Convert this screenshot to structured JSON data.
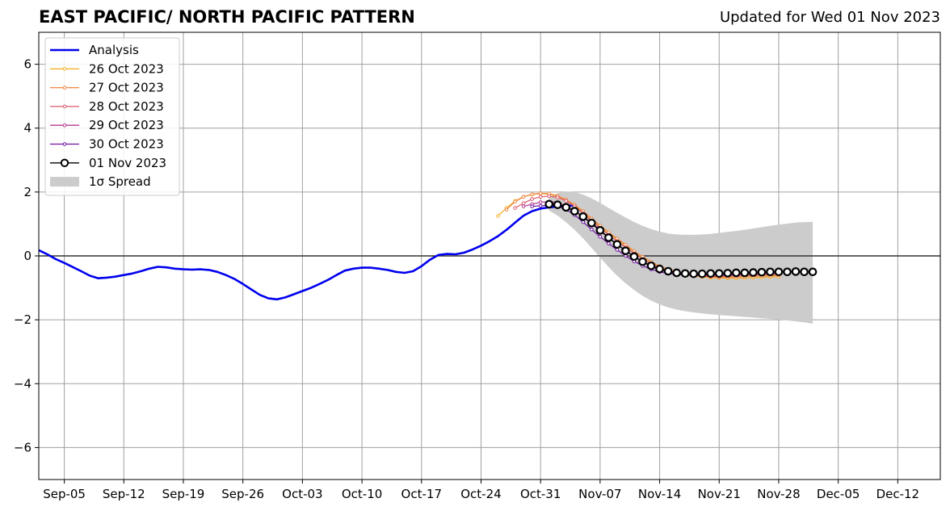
{
  "chart_data": {
    "type": "line",
    "title": "EAST PACIFIC/ NORTH PACIFIC PATTERN",
    "subtitle": "Updated for Wed 01 Nov 2023",
    "xlabel": "",
    "ylabel": "",
    "xlim": [
      "2023-09-02",
      "2023-12-17"
    ],
    "ylim": [
      -7,
      7
    ],
    "xticks": [
      "Sep-05",
      "Sep-12",
      "Sep-19",
      "Sep-26",
      "Oct-03",
      "Oct-10",
      "Oct-17",
      "Oct-24",
      "Oct-31",
      "Nov-07",
      "Nov-14",
      "Nov-21",
      "Nov-28",
      "Dec-05",
      "Dec-12"
    ],
    "xtick_dates": [
      "2023-09-05",
      "2023-09-12",
      "2023-09-19",
      "2023-09-26",
      "2023-10-03",
      "2023-10-10",
      "2023-10-17",
      "2023-10-24",
      "2023-10-31",
      "2023-11-07",
      "2023-11-14",
      "2023-11-21",
      "2023-11-28",
      "2023-12-05",
      "2023-12-12"
    ],
    "yticks": [
      -6,
      -4,
      -2,
      0,
      2,
      4,
      6
    ],
    "ytick_labels": [
      "−6",
      "−4",
      "−2",
      "0",
      "2",
      "4",
      "6"
    ],
    "grid": true,
    "legend_position": "top-left",
    "series": [
      {
        "name": "Analysis",
        "color": "#0000ee",
        "style": "line",
        "start": "2023-09-02",
        "values": [
          0.18,
          0.05,
          -0.1,
          -0.22,
          -0.35,
          -0.48,
          -0.62,
          -0.7,
          -0.68,
          -0.65,
          -0.6,
          -0.55,
          -0.48,
          -0.4,
          -0.34,
          -0.36,
          -0.4,
          -0.42,
          -0.43,
          -0.42,
          -0.44,
          -0.5,
          -0.6,
          -0.72,
          -0.88,
          -1.05,
          -1.22,
          -1.33,
          -1.36,
          -1.3,
          -1.2,
          -1.1,
          -1.0,
          -0.88,
          -0.75,
          -0.6,
          -0.46,
          -0.4,
          -0.37,
          -0.37,
          -0.4,
          -0.44,
          -0.5,
          -0.53,
          -0.48,
          -0.32,
          -0.12,
          0.03,
          0.06,
          0.05,
          0.1,
          0.2,
          0.32,
          0.46,
          0.62,
          0.82,
          1.04,
          1.26,
          1.4,
          1.48,
          1.52,
          1.55,
          1.57,
          1.58
        ]
      },
      {
        "name": "26 Oct 2023",
        "color": "#f5b027",
        "style": "line-dot",
        "start": "2023-10-26",
        "values": [
          1.25,
          1.5,
          1.72,
          1.85,
          1.92,
          1.95,
          1.93,
          1.86,
          1.75,
          1.58,
          1.38,
          1.15,
          0.92,
          0.72,
          0.52,
          0.32,
          0.12,
          -0.05,
          -0.2,
          -0.33,
          -0.43,
          -0.52,
          -0.58,
          -0.63,
          -0.66,
          -0.68,
          -0.69,
          -0.7,
          -0.7,
          -0.69,
          -0.68,
          -0.67,
          -0.66,
          -0.65
        ]
      },
      {
        "name": "27 Oct 2023",
        "color": "#f0843f",
        "style": "line-dot",
        "start": "2023-10-27",
        "values": [
          1.45,
          1.7,
          1.85,
          1.93,
          1.96,
          1.95,
          1.88,
          1.76,
          1.6,
          1.4,
          1.17,
          0.95,
          0.74,
          0.54,
          0.35,
          0.15,
          -0.03,
          -0.18,
          -0.32,
          -0.42,
          -0.5,
          -0.56,
          -0.61,
          -0.64,
          -0.66,
          -0.67,
          -0.67,
          -0.66,
          -0.65,
          -0.64,
          -0.63,
          -0.62,
          -0.61
        ]
      },
      {
        "name": "28 Oct 2023",
        "color": "#dc5a6e",
        "style": "line-dot",
        "start": "2023-10-28",
        "values": [
          1.5,
          1.65,
          1.78,
          1.85,
          1.87,
          1.83,
          1.72,
          1.55,
          1.34,
          1.1,
          0.88,
          0.66,
          0.46,
          0.27,
          0.08,
          -0.1,
          -0.25,
          -0.37,
          -0.46,
          -0.53,
          -0.58,
          -0.61,
          -0.63,
          -0.64,
          -0.64,
          -0.63,
          -0.62,
          -0.61,
          -0.6,
          -0.59,
          -0.58,
          -0.57
        ]
      },
      {
        "name": "29 Oct 2023",
        "color": "#b5388f",
        "style": "line-dot",
        "start": "2023-10-29",
        "values": [
          1.55,
          1.62,
          1.68,
          1.7,
          1.67,
          1.57,
          1.42,
          1.22,
          1.0,
          0.78,
          0.56,
          0.36,
          0.17,
          -0.02,
          -0.19,
          -0.33,
          -0.44,
          -0.52,
          -0.57,
          -0.6,
          -0.62,
          -0.62,
          -0.62,
          -0.61,
          -0.6,
          -0.59,
          -0.58,
          -0.57,
          -0.56,
          -0.55,
          -0.54
        ]
      },
      {
        "name": "30 Oct 2023",
        "color": "#6e14a0",
        "style": "line-dot",
        "start": "2023-10-30",
        "values": [
          1.55,
          1.57,
          1.58,
          1.55,
          1.45,
          1.28,
          1.06,
          0.83,
          0.6,
          0.39,
          0.19,
          0.0,
          -0.17,
          -0.31,
          -0.42,
          -0.5,
          -0.55,
          -0.58,
          -0.6,
          -0.6,
          -0.59,
          -0.58,
          -0.57,
          -0.56,
          -0.55,
          -0.54,
          -0.53,
          -0.52,
          -0.51,
          -0.5
        ]
      },
      {
        "name": "01 Nov 2023",
        "color": "#000000",
        "style": "open-circle",
        "start": "2023-11-01",
        "values": [
          1.62,
          1.6,
          1.52,
          1.4,
          1.23,
          1.03,
          0.8,
          0.57,
          0.36,
          0.16,
          -0.02,
          -0.18,
          -0.31,
          -0.41,
          -0.48,
          -0.53,
          -0.55,
          -0.56,
          -0.56,
          -0.55,
          -0.55,
          -0.54,
          -0.53,
          -0.53,
          -0.52,
          -0.51,
          -0.5,
          -0.5,
          -0.5,
          -0.49,
          -0.5,
          -0.5
        ]
      }
    ],
    "spread": {
      "name": "1σ Spread",
      "color": "#cccccc",
      "start": "2023-11-01",
      "upper": [
        1.82,
        1.96,
        2.02,
        2.0,
        1.92,
        1.8,
        1.66,
        1.5,
        1.35,
        1.2,
        1.06,
        0.94,
        0.84,
        0.76,
        0.7,
        0.67,
        0.66,
        0.66,
        0.67,
        0.69,
        0.72,
        0.75,
        0.78,
        0.82,
        0.86,
        0.9,
        0.94,
        0.98,
        1.01,
        1.04,
        1.06,
        1.07
      ],
      "lower": [
        1.42,
        1.26,
        1.05,
        0.82,
        0.55,
        0.25,
        -0.05,
        -0.35,
        -0.62,
        -0.86,
        -1.07,
        -1.25,
        -1.4,
        -1.52,
        -1.61,
        -1.68,
        -1.73,
        -1.77,
        -1.8,
        -1.83,
        -1.85,
        -1.87,
        -1.89,
        -1.91,
        -1.93,
        -1.95,
        -1.97,
        -1.99,
        -2.02,
        -2.05,
        -2.08,
        -2.12
      ]
    }
  }
}
